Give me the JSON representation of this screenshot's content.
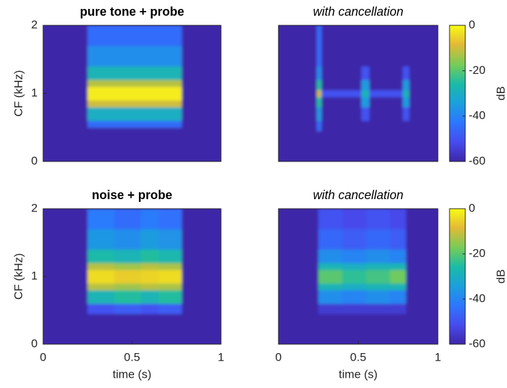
{
  "chart_data": [
    {
      "type": "heatmap",
      "title": "pure tone + probe",
      "ylabel": "CF (kHz)",
      "xlim": [
        0,
        1
      ],
      "ylim": [
        0,
        2
      ],
      "yticks": [
        0,
        1,
        2
      ],
      "xbins": [
        0,
        0.25,
        0.78,
        1
      ],
      "ybins": [
        0,
        0.5,
        0.6,
        0.8,
        0.9,
        1.1,
        1.2,
        1.4,
        1.7,
        2
      ],
      "z": [
        [
          -60,
          -60,
          -60
        ],
        [
          -60,
          -45,
          -60
        ],
        [
          -60,
          -30,
          -60
        ],
        [
          -60,
          -10,
          -60
        ],
        [
          -60,
          -2,
          -60
        ],
        [
          -60,
          -12,
          -60
        ],
        [
          -60,
          -28,
          -60
        ],
        [
          -60,
          -38,
          -60
        ],
        [
          -60,
          -45,
          -60
        ]
      ]
    },
    {
      "type": "heatmap",
      "title": "with cancellation",
      "xlim": [
        0,
        1
      ],
      "ylim": [
        0,
        2
      ],
      "xbins": [
        0,
        0.24,
        0.27,
        0.52,
        0.57,
        0.78,
        0.82,
        1
      ],
      "ybins": [
        0,
        0.45,
        0.6,
        0.8,
        0.95,
        1.05,
        1.2,
        1.4,
        1.7,
        2
      ],
      "z": [
        [
          -60,
          -60,
          -60,
          -60,
          -60,
          -60,
          -60
        ],
        [
          -60,
          -45,
          -60,
          -60,
          -60,
          -60,
          -60
        ],
        [
          -60,
          -35,
          -60,
          -50,
          -60,
          -50,
          -60
        ],
        [
          -60,
          -25,
          -60,
          -35,
          -60,
          -35,
          -60
        ],
        [
          -60,
          -10,
          -50,
          -28,
          -50,
          -28,
          -60
        ],
        [
          -60,
          -25,
          -60,
          -35,
          -60,
          -35,
          -60
        ],
        [
          -60,
          -38,
          -60,
          -50,
          -60,
          -50,
          -60
        ],
        [
          -60,
          -45,
          -60,
          -60,
          -60,
          -60,
          -60
        ],
        [
          -60,
          -45,
          -60,
          -60,
          -60,
          -60,
          -60
        ]
      ],
      "colorbar": {
        "label": "dB",
        "clim": [
          -60,
          0
        ],
        "ticks": [
          0,
          -20,
          -40,
          -60
        ]
      }
    },
    {
      "type": "heatmap",
      "title": "noise + probe",
      "ylabel": "CF (kHz)",
      "xlabel": "time (s)",
      "xlim": [
        0,
        1
      ],
      "ylim": [
        0,
        2
      ],
      "xticks": [
        0,
        0.5,
        1
      ],
      "yticks": [
        0,
        1,
        2
      ],
      "xbins": [
        0,
        0.25,
        0.4,
        0.55,
        0.65,
        0.78,
        1
      ],
      "ybins": [
        0,
        0.45,
        0.6,
        0.8,
        0.9,
        1.1,
        1.2,
        1.4,
        1.7,
        2
      ],
      "z": [
        [
          -60,
          -60,
          -60,
          -60,
          -60,
          -60
        ],
        [
          -60,
          -50,
          -48,
          -50,
          -48,
          -60
        ],
        [
          -60,
          -28,
          -25,
          -28,
          -25,
          -60
        ],
        [
          -60,
          -12,
          -14,
          -12,
          -13,
          -60
        ],
        [
          -60,
          -4,
          -6,
          -5,
          -4,
          -60
        ],
        [
          -60,
          -12,
          -14,
          -12,
          -13,
          -60
        ],
        [
          -60,
          -26,
          -28,
          -25,
          -27,
          -60
        ],
        [
          -60,
          -36,
          -38,
          -35,
          -37,
          -60
        ],
        [
          -60,
          -42,
          -45,
          -42,
          -44,
          -60
        ]
      ]
    },
    {
      "type": "heatmap",
      "title": "with cancellation",
      "xlabel": "time (s)",
      "xlim": [
        0,
        1
      ],
      "ylim": [
        0,
        2
      ],
      "xticks": [
        0,
        0.5,
        1
      ],
      "xbins": [
        0,
        0.25,
        0.4,
        0.55,
        0.7,
        0.8,
        1
      ],
      "ybins": [
        0,
        0.45,
        0.6,
        0.8,
        0.9,
        1.1,
        1.2,
        1.4,
        1.7,
        2
      ],
      "z": [
        [
          -60,
          -60,
          -60,
          -60,
          -60,
          -60
        ],
        [
          -60,
          -55,
          -55,
          -55,
          -55,
          -60
        ],
        [
          -60,
          -38,
          -40,
          -38,
          -40,
          -60
        ],
        [
          -60,
          -28,
          -30,
          -28,
          -28,
          -60
        ],
        [
          -60,
          -20,
          -24,
          -22,
          -18,
          -60
        ],
        [
          -60,
          -28,
          -30,
          -28,
          -28,
          -60
        ],
        [
          -60,
          -38,
          -40,
          -38,
          -40,
          -60
        ],
        [
          -60,
          -46,
          -48,
          -46,
          -48,
          -60
        ],
        [
          -60,
          -50,
          -52,
          -50,
          -52,
          -60
        ]
      ],
      "colorbar": {
        "label": "dB",
        "clim": [
          -60,
          0
        ],
        "ticks": [
          0,
          -20,
          -40,
          -60
        ]
      }
    }
  ]
}
